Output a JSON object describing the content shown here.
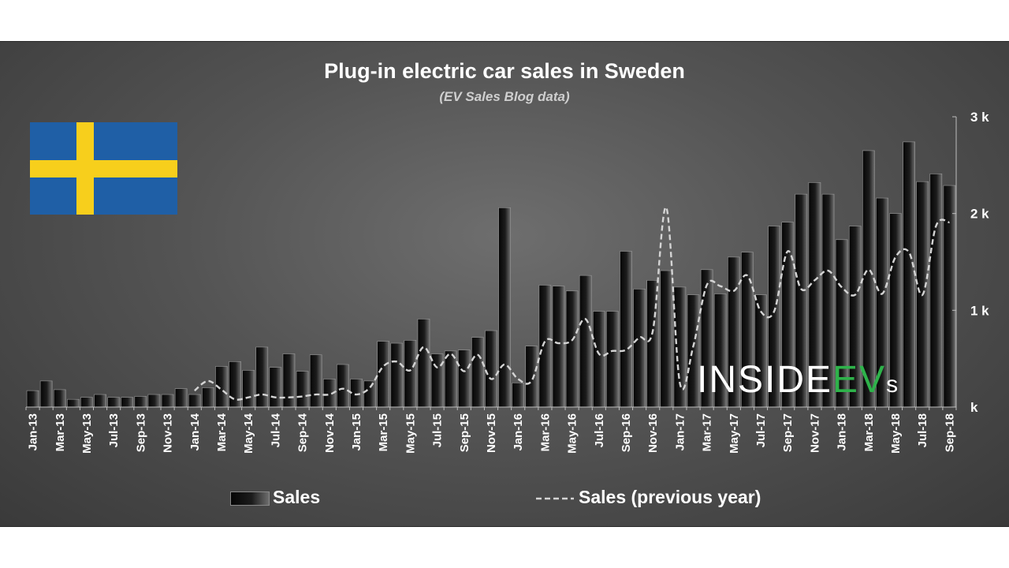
{
  "chart_data": {
    "type": "bar",
    "title": "Plug-in electric car sales in Sweden",
    "subtitle": "(EV Sales Blog data)",
    "ylim": [
      0,
      3000
    ],
    "yticks": [
      {
        "value": 0,
        "label": "k"
      },
      {
        "value": 1000,
        "label": "1 k"
      },
      {
        "value": 2000,
        "label": "2 k"
      },
      {
        "value": 3000,
        "label": "3 k"
      }
    ],
    "axis_side": "right",
    "categories": [
      "Jan-13",
      "Feb-13",
      "Mar-13",
      "Apr-13",
      "May-13",
      "Jun-13",
      "Jul-13",
      "Aug-13",
      "Sep-13",
      "Oct-13",
      "Nov-13",
      "Dec-13",
      "Jan-14",
      "Feb-14",
      "Mar-14",
      "Apr-14",
      "May-14",
      "Jun-14",
      "Jul-14",
      "Aug-14",
      "Sep-14",
      "Oct-14",
      "Nov-14",
      "Dec-14",
      "Jan-15",
      "Feb-15",
      "Mar-15",
      "Apr-15",
      "May-15",
      "Jun-15",
      "Jul-15",
      "Aug-15",
      "Sep-15",
      "Oct-15",
      "Nov-15",
      "Dec-15",
      "Jan-16",
      "Feb-16",
      "Mar-16",
      "Apr-16",
      "May-16",
      "Jun-16",
      "Jul-16",
      "Aug-16",
      "Sep-16",
      "Oct-16",
      "Nov-16",
      "Dec-16",
      "Jan-17",
      "Feb-17",
      "Mar-17",
      "Apr-17",
      "May-17",
      "Jun-17",
      "Jul-17",
      "Aug-17",
      "Sep-17",
      "Oct-17",
      "Nov-17",
      "Dec-17",
      "Jan-18",
      "Feb-18",
      "Mar-18",
      "Apr-18",
      "May-18",
      "Jun-18",
      "Jul-18",
      "Aug-18",
      "Sep-18"
    ],
    "tick_labels": [
      "Jan-13",
      "Mar-13",
      "May-13",
      "Jul-13",
      "Sep-13",
      "Nov-13",
      "Jan-14",
      "Mar-14",
      "May-14",
      "Jul-14",
      "Sep-14",
      "Nov-14",
      "Jan-15",
      "Mar-15",
      "May-15",
      "Jul-15",
      "Sep-15",
      "Nov-15",
      "Jan-16",
      "Mar-16",
      "May-16",
      "Jul-16",
      "Sep-16",
      "Nov-16",
      "Jan-17",
      "Mar-17",
      "May-17",
      "Jul-17",
      "Sep-17",
      "Nov-17",
      "Jan-18",
      "Mar-18",
      "May-18",
      "Jul-18",
      "Sep-18"
    ],
    "series": [
      {
        "name": "Sales",
        "style": "bar",
        "values": [
          170,
          270,
          180,
          80,
          100,
          130,
          100,
          100,
          110,
          130,
          130,
          190,
          130,
          200,
          420,
          470,
          380,
          620,
          410,
          550,
          370,
          540,
          290,
          440,
          290,
          270,
          680,
          660,
          690,
          910,
          550,
          580,
          590,
          720,
          790,
          2060,
          250,
          630,
          1260,
          1250,
          1200,
          1360,
          990,
          990,
          1610,
          1220,
          1310,
          1410,
          1240,
          1160,
          1420,
          1170,
          1550,
          1600,
          1160,
          1870,
          1910,
          2200,
          2320,
          2200,
          1730,
          1870,
          2650,
          2160,
          2000,
          2740,
          2330,
          2410,
          2290
        ]
      },
      {
        "name": "Sales (previous year)",
        "style": "dashed-line",
        "values": [
          null,
          null,
          null,
          null,
          null,
          null,
          null,
          null,
          null,
          null,
          null,
          null,
          170,
          270,
          180,
          80,
          100,
          130,
          100,
          100,
          110,
          130,
          130,
          190,
          130,
          200,
          420,
          470,
          380,
          620,
          410,
          550,
          370,
          540,
          290,
          440,
          290,
          270,
          680,
          660,
          690,
          910,
          550,
          580,
          590,
          720,
          790,
          2060,
          250,
          630,
          1260,
          1250,
          1200,
          1360,
          990,
          990,
          1610,
          1220,
          1310,
          1410,
          1240,
          1160,
          1420,
          1170,
          1550,
          1600,
          1160,
          1870,
          1910
        ]
      }
    ],
    "legend": "bottom",
    "grid": false
  },
  "colors": {
    "bar_fill_dark": "#050505",
    "bar_fill_light": "#7a7a7a",
    "line": "#d4d4d4",
    "flag_blue": "#1f5fa6",
    "flag_yellow": "#f7cf1c",
    "watermark_white": "#ffffff",
    "watermark_green": "#2eb24a"
  },
  "icons": {
    "flag": "sweden-flag-icon",
    "watermark": "insideevs-logo-icon"
  },
  "watermark_text": {
    "part1": "INSIDE",
    "part2": "EV",
    "part3": "s"
  }
}
